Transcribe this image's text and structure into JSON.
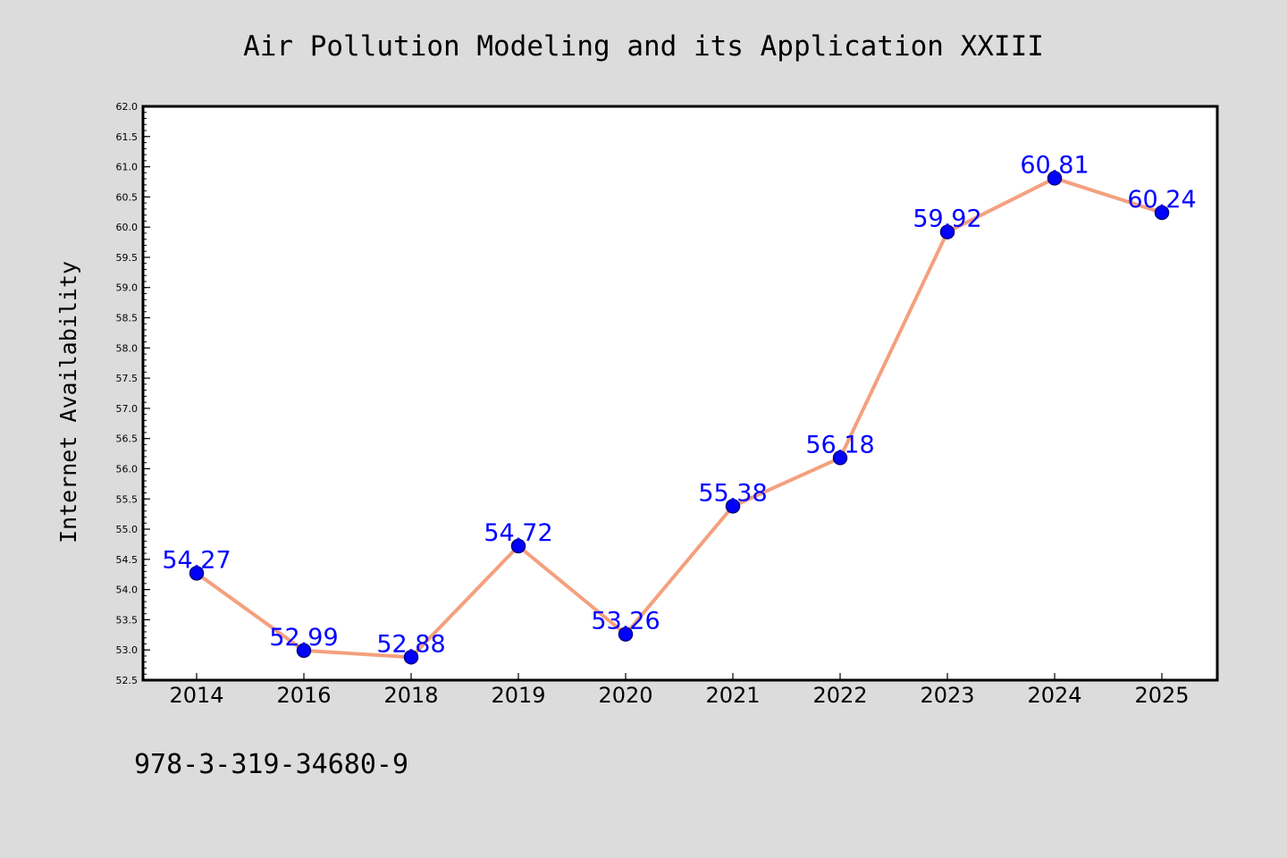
{
  "chart_data": {
    "type": "line",
    "title": "Air Pollution Modeling and its Application XXIII",
    "xlabel": "",
    "ylabel": "Internet Availability",
    "categories": [
      "2014",
      "2016",
      "2018",
      "2019",
      "2020",
      "2021",
      "2022",
      "2023",
      "2024",
      "2025"
    ],
    "series": [
      {
        "values": [
          54.27,
          52.99,
          52.88,
          54.72,
          53.26,
          55.38,
          56.18,
          59.92,
          60.81,
          60.24
        ],
        "data_labels": [
          "54.27",
          "52.99",
          "52.88",
          "54.72",
          "53.26",
          "55.38",
          "56.18",
          "59.92",
          "60.81",
          "60.24"
        ]
      }
    ],
    "ylim": [
      52.5,
      62.0
    ],
    "yticks": [
      "52.5",
      "53.0",
      "53.5",
      "54.0",
      "54.5",
      "55.0",
      "55.5",
      "56.0",
      "56.5",
      "57.0",
      "57.5",
      "58.0",
      "58.5",
      "59.0",
      "59.5",
      "60.0",
      "60.5",
      "61.0",
      "61.5",
      "62.0"
    ],
    "grid": false,
    "legend": "none"
  },
  "footer_text": "978-3-319-34680-9",
  "colors": {
    "background": "#dcdcdc",
    "plot_background": "#ffffff",
    "line": "#f4a07e",
    "marker": "#0000ff",
    "marker_edge": "#000080",
    "data_label": "#0000ff",
    "text": "#000000"
  }
}
